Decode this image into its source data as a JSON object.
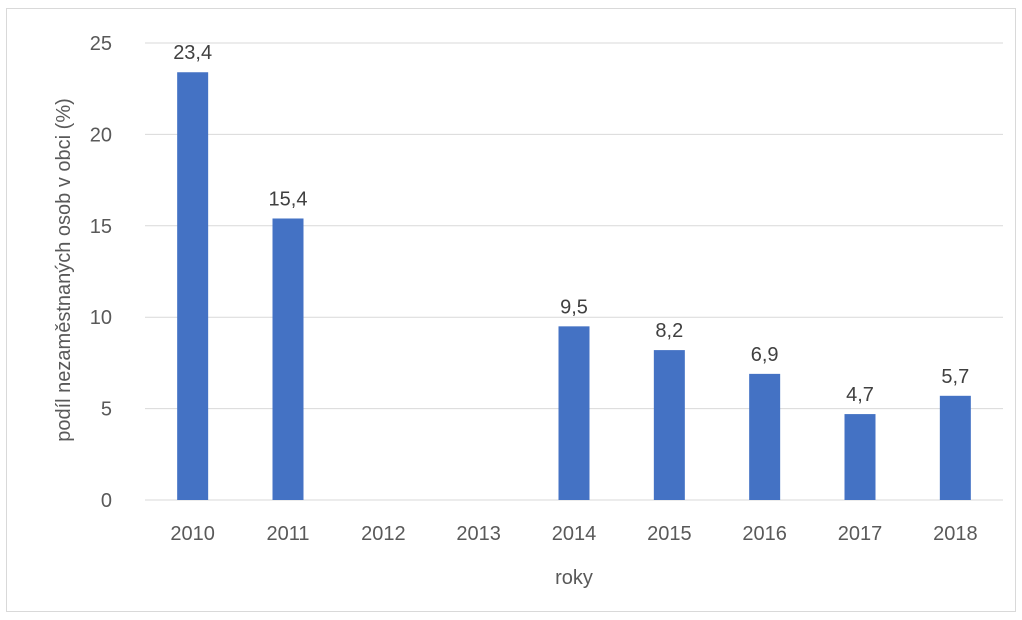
{
  "chart_data": {
    "type": "bar",
    "categories": [
      "2010",
      "2011",
      "2012",
      "2013",
      "2014",
      "2015",
      "2016",
      "2017",
      "2018"
    ],
    "values": [
      23.4,
      15.4,
      null,
      null,
      9.5,
      8.2,
      6.9,
      4.7,
      5.7
    ],
    "data_labels": [
      "23,4",
      "15,4",
      "",
      "",
      "9,5",
      "8,2",
      "6,9",
      "4,7",
      "5,7"
    ],
    "yticks": [
      "0",
      "5",
      "10",
      "15",
      "20",
      "25"
    ],
    "ytick_values": [
      0,
      5,
      10,
      15,
      20,
      25
    ],
    "xlabel": "roky",
    "ylabel": "podíl nezaměstnaných osob v obci (%)",
    "ylim": [
      0,
      25
    ],
    "grid": true,
    "legend": "none",
    "bar_color": "#4472c4",
    "grid_color": "#d9d9d9"
  }
}
